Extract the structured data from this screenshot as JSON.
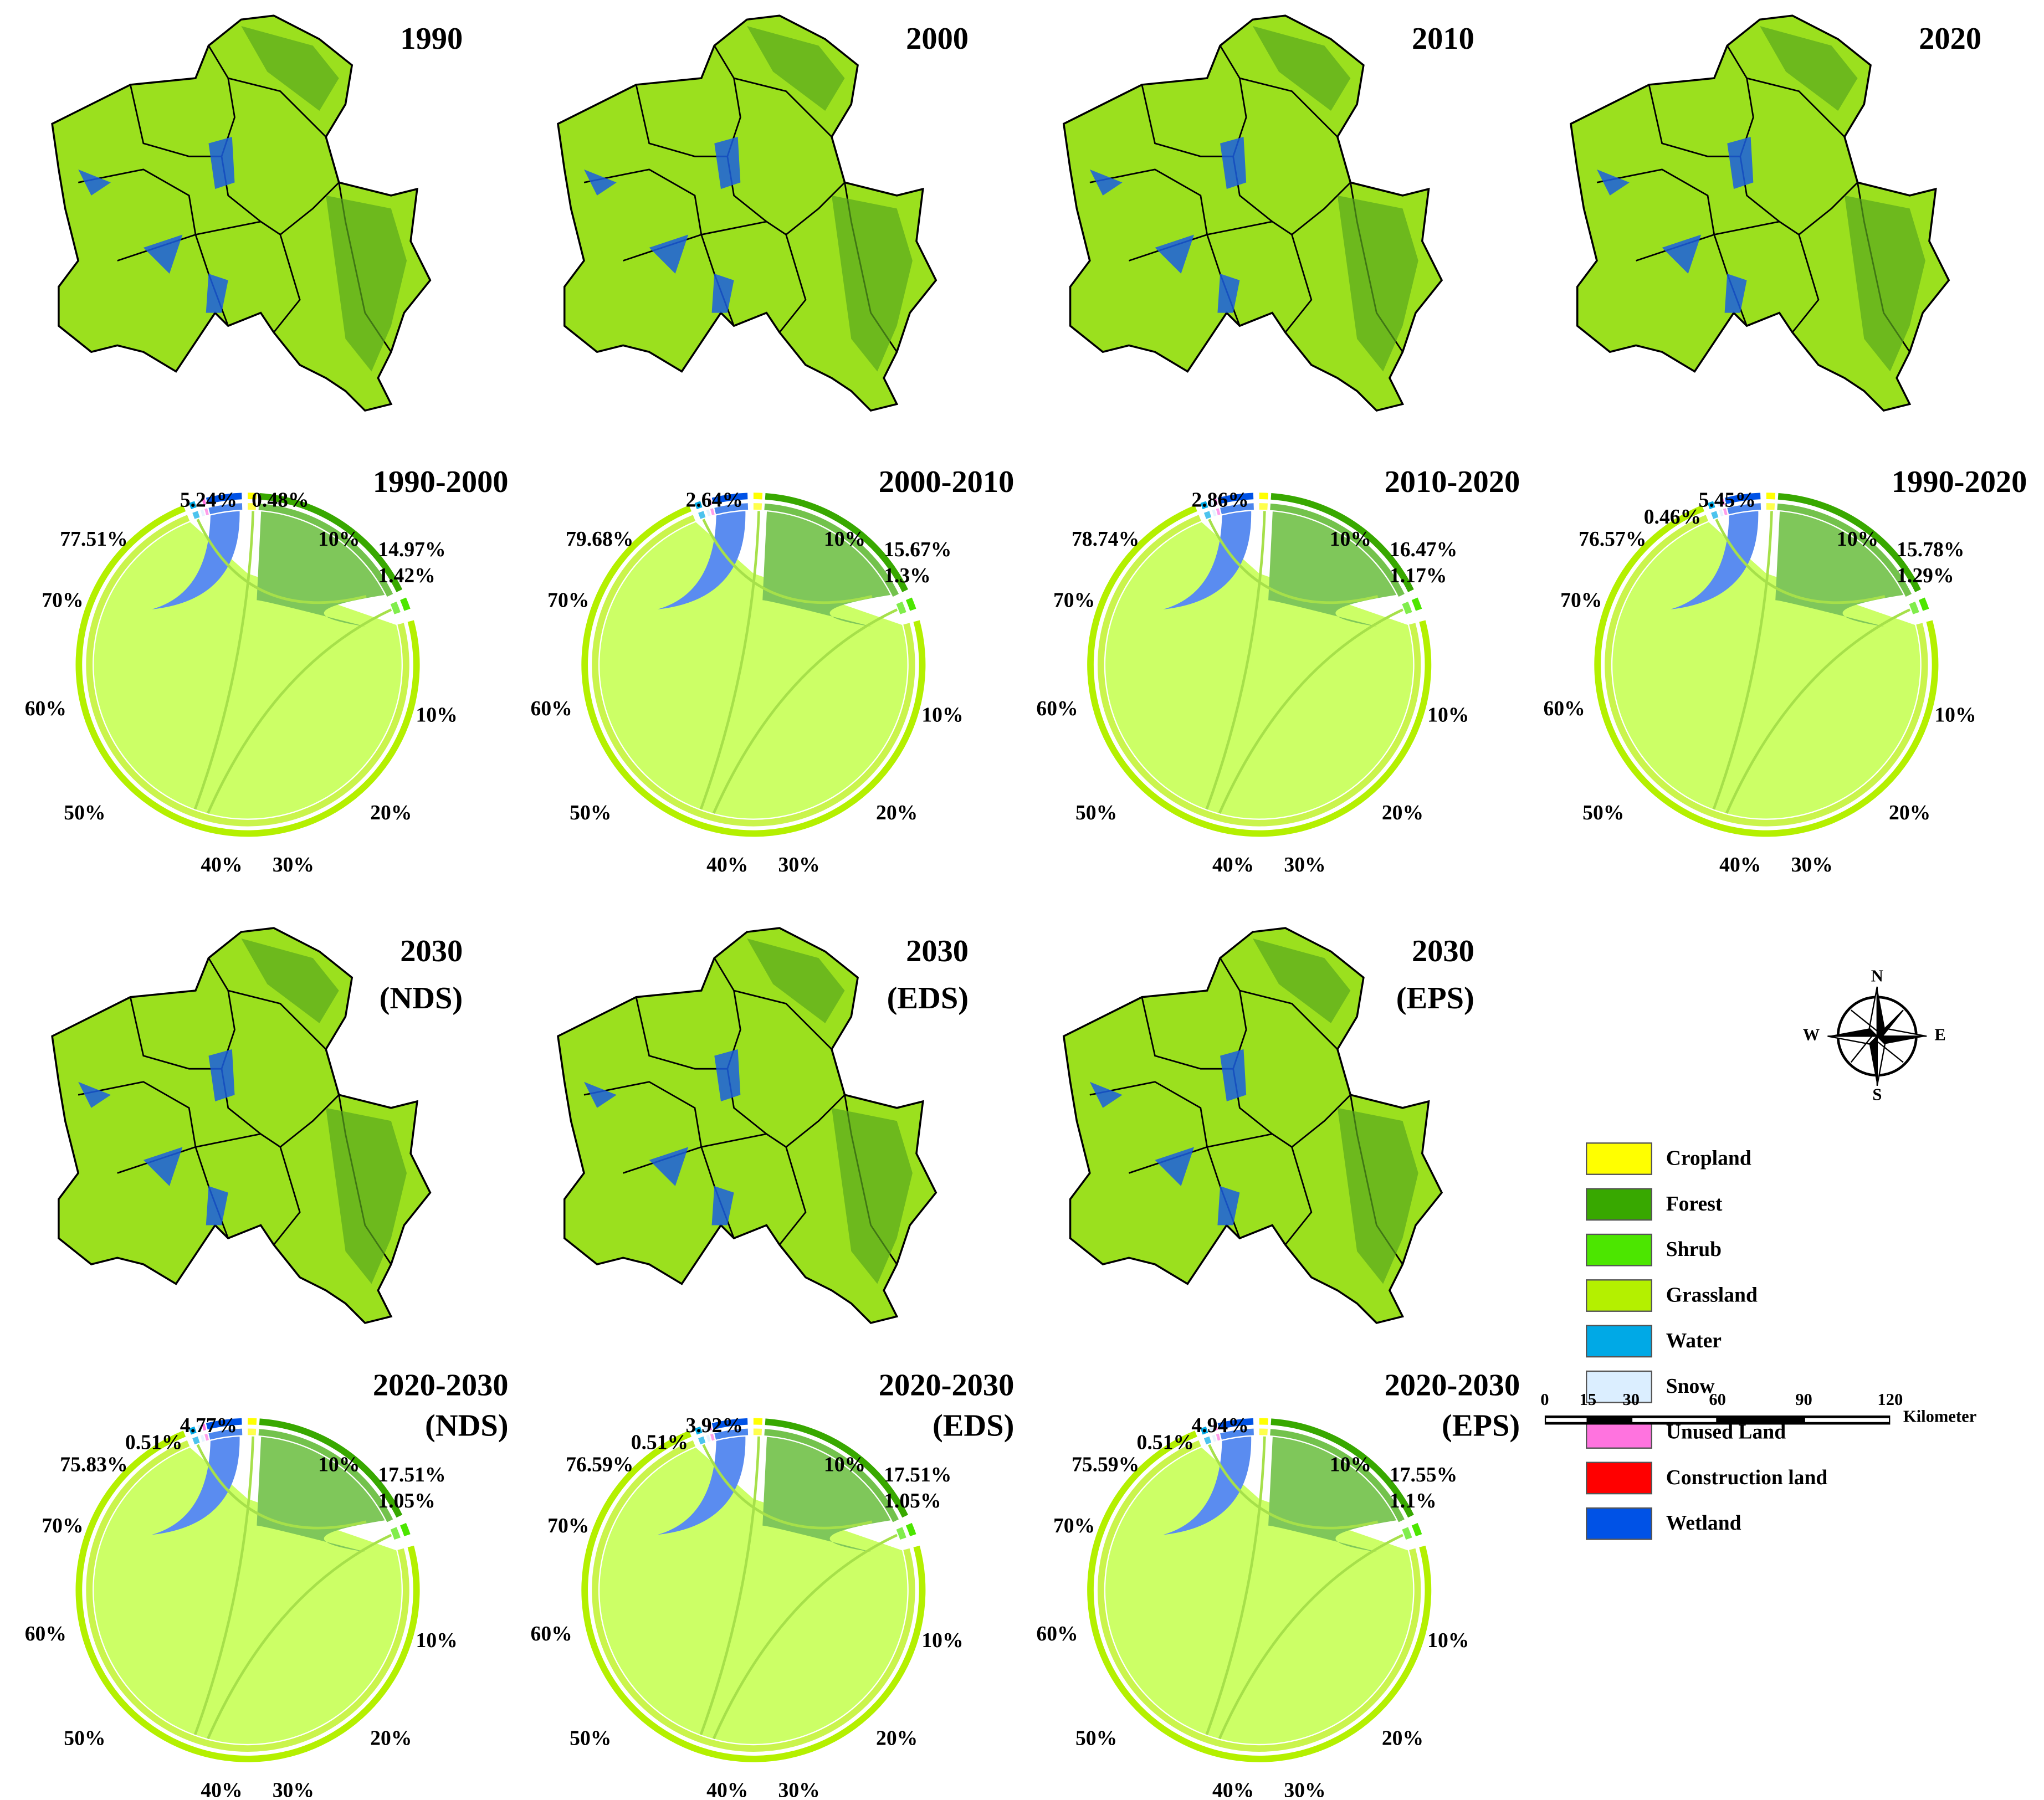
{
  "maps": [
    {
      "title": [
        "1990"
      ]
    },
    {
      "title": [
        "2000"
      ]
    },
    {
      "title": [
        "2010"
      ]
    },
    {
      "title": [
        "2020"
      ]
    },
    {
      "title": [
        "2030",
        "(NDS)"
      ]
    },
    {
      "title": [
        "2030",
        "(EDS)"
      ]
    },
    {
      "title": [
        "2030",
        "(EPS)"
      ]
    }
  ],
  "chords": [
    {
      "title": [
        "1990-2000"
      ],
      "labels": {
        "grassland": "77.51%",
        "wetland": "5.24%",
        "cropland": "0.48%",
        "forest": "14.97%",
        "shrub": "1.42%"
      }
    },
    {
      "title": [
        "2000-2010"
      ],
      "labels": {
        "grassland": "79.68%",
        "wetland": "2.64%",
        "forest": "15.67%",
        "shrub": "1.3%"
      }
    },
    {
      "title": [
        "2010-2020"
      ],
      "labels": {
        "grassland": "78.74%",
        "wetland": "2.86%",
        "forest": "16.47%",
        "shrub": "1.17%"
      }
    },
    {
      "title": [
        "1990-2020"
      ],
      "labels": {
        "grassland": "76.57%",
        "snow": "0.46%",
        "wetland": "5.45%",
        "forest": "15.78%",
        "shrub": "1.29%"
      }
    },
    {
      "title": [
        "2020-2030",
        "(NDS)"
      ],
      "labels": {
        "grassland": "75.83%",
        "snow": "0.51%",
        "wetland": "4.77%",
        "forest": "17.51%",
        "shrub": "1.05%"
      }
    },
    {
      "title": [
        "2020-2030",
        "(EDS)"
      ],
      "labels": {
        "grassland": "76.59%",
        "snow": "0.51%",
        "wetland": "3.92%",
        "forest": "17.51%",
        "shrub": "1.05%"
      }
    },
    {
      "title": [
        "2020-2030",
        "(EPS)"
      ],
      "labels": {
        "grassland": "75.59%",
        "snow": "0.51%",
        "wetland": "4.94%",
        "forest": "17.55%",
        "shrub": "1.1%"
      }
    }
  ],
  "ring_ticks": [
    "10%",
    "70%",
    "60%",
    "50%",
    "40%",
    "30%",
    "20%",
    "10%"
  ],
  "legend": [
    {
      "label": "Cropland",
      "color": "#ffff00"
    },
    {
      "label": "Forest",
      "color": "#38a800"
    },
    {
      "label": "Shrub",
      "color": "#4ce600"
    },
    {
      "label": "Grassland",
      "color": "#b4f000"
    },
    {
      "label": "Water",
      "color": "#00a9e6"
    },
    {
      "label": "Snow",
      "color": "#dbeeff"
    },
    {
      "label": "Unused Land",
      "color": "#ff73df"
    },
    {
      "label": "Construction land",
      "color": "#ff0000"
    },
    {
      "label": "Wetland",
      "color": "#0052e6"
    }
  ],
  "compass": {
    "north": "N",
    "south": "S",
    "east": "E",
    "west": "W"
  },
  "scale_bar": {
    "ticks": [
      0,
      15,
      30,
      60,
      90,
      120
    ],
    "unit": "Kilometer"
  }
}
